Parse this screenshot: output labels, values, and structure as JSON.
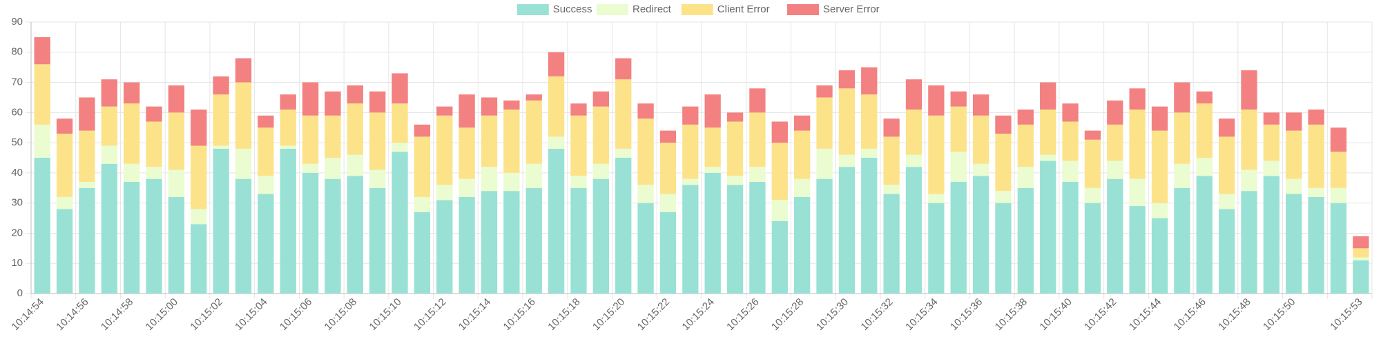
{
  "chart_data": {
    "type": "bar",
    "stacked": true,
    "legend": "top",
    "grid": true,
    "categories": [
      "10:14:54",
      null,
      "10:14:56",
      null,
      "10:14:58",
      null,
      "10:15:00",
      null,
      "10:15:02",
      null,
      "10:15:04",
      null,
      "10:15:06",
      null,
      "10:15:08",
      null,
      "10:15:10",
      null,
      "10:15:12",
      null,
      "10:15:14",
      null,
      "10:15:16",
      null,
      "10:15:18",
      null,
      "10:15:20",
      null,
      "10:15:22",
      null,
      "10:15:24",
      null,
      "10:15:26",
      null,
      "10:15:28",
      null,
      "10:15:30",
      null,
      "10:15:32",
      null,
      "10:15:34",
      null,
      "10:15:36",
      null,
      "10:15:38",
      null,
      "10:15:40",
      null,
      "10:15:42",
      null,
      "10:15:44",
      null,
      "10:15:46",
      null,
      "10:15:48",
      null,
      "10:15:50",
      null,
      null,
      "10:15:53"
    ],
    "series": [
      {
        "name": "Success",
        "color": "#99e1d5",
        "values": [
          45,
          28,
          35,
          43,
          37,
          38,
          32,
          23,
          48,
          38,
          33,
          48,
          40,
          38,
          39,
          35,
          47,
          27,
          31,
          32,
          34,
          34,
          35,
          48,
          35,
          38,
          45,
          30,
          27,
          36,
          40,
          36,
          37,
          24,
          32,
          38,
          42,
          45,
          33,
          42,
          30,
          37,
          39,
          30,
          35,
          44,
          37,
          30,
          38,
          29,
          25,
          35,
          39,
          28,
          34,
          39,
          33,
          32,
          30,
          11
        ]
      },
      {
        "name": "Redirect",
        "color": "#eafcd0",
        "values": [
          11,
          4,
          2,
          6,
          6,
          4,
          9,
          5,
          1,
          10,
          6,
          1,
          3,
          7,
          7,
          6,
          3,
          5,
          5,
          6,
          8,
          6,
          8,
          4,
          4,
          5,
          3,
          6,
          6,
          2,
          2,
          3,
          5,
          7,
          6,
          10,
          4,
          3,
          3,
          4,
          3,
          10,
          4,
          4,
          7,
          2,
          7,
          5,
          6,
          9,
          5,
          8,
          6,
          5,
          7,
          5,
          5,
          3,
          5,
          1
        ]
      },
      {
        "name": "Client Error",
        "color": "#fce38a",
        "values": [
          20,
          21,
          17,
          13,
          20,
          15,
          19,
          21,
          17,
          22,
          16,
          12,
          16,
          14,
          17,
          19,
          13,
          20,
          23,
          17,
          17,
          21,
          21,
          20,
          20,
          19,
          23,
          22,
          17,
          18,
          13,
          18,
          18,
          19,
          16,
          17,
          22,
          18,
          16,
          15,
          26,
          15,
          16,
          19,
          14,
          15,
          13,
          16,
          12,
          23,
          24,
          17,
          18,
          19,
          20,
          12,
          16,
          21,
          12,
          3
        ]
      },
      {
        "name": "Server Error",
        "color": "#f38181",
        "values": [
          9,
          5,
          11,
          9,
          7,
          5,
          9,
          12,
          6,
          8,
          4,
          5,
          11,
          8,
          6,
          7,
          10,
          4,
          3,
          11,
          6,
          3,
          2,
          8,
          4,
          5,
          7,
          5,
          4,
          6,
          11,
          3,
          8,
          7,
          5,
          4,
          6,
          9,
          6,
          10,
          10,
          5,
          7,
          6,
          5,
          9,
          6,
          3,
          8,
          7,
          8,
          10,
          4,
          6,
          13,
          4,
          6,
          5,
          8,
          4
        ]
      }
    ],
    "ylim": [
      0,
      90
    ],
    "yticks": [
      0,
      10,
      20,
      30,
      40,
      50,
      60,
      70,
      80,
      90
    ]
  }
}
